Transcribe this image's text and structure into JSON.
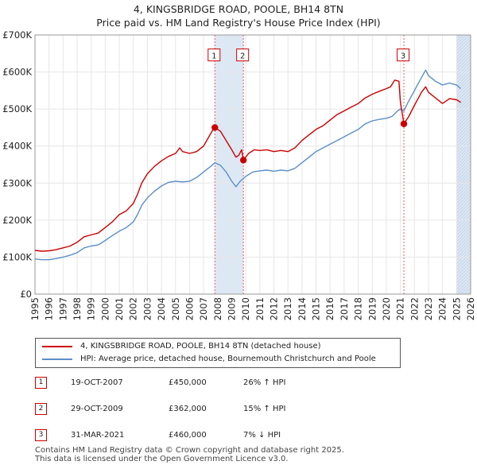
{
  "title": "4, KINGSBRIDGE ROAD, POOLE, BH14 8TN",
  "subtitle": "Price paid vs. HM Land Registry's House Price Index (HPI)",
  "colors": {
    "property": "#cc0000",
    "hpi": "#5b8fc9",
    "shade": "#dde8f5",
    "axis": "#333333"
  },
  "chart_data": {
    "type": "line",
    "title": "4, KINGSBRIDGE ROAD, POOLE, BH14 8TN",
    "subtitle": "Price paid vs. HM Land Registry's House Price Index (HPI)",
    "xlim": [
      1995,
      2026
    ],
    "ylim": [
      0,
      700000
    ],
    "yticks": [
      {
        "value": 0,
        "label": "£0"
      },
      {
        "value": 100000,
        "label": "£100K"
      },
      {
        "value": 200000,
        "label": "£200K"
      },
      {
        "value": 300000,
        "label": "£300K"
      },
      {
        "value": 400000,
        "label": "£400K"
      },
      {
        "value": 500000,
        "label": "£500K"
      },
      {
        "value": 600000,
        "label": "£600K"
      },
      {
        "value": 700000,
        "label": "£700K"
      }
    ],
    "xticks": [
      "1995",
      "1996",
      "1997",
      "1998",
      "1999",
      "2000",
      "2001",
      "2002",
      "2003",
      "2004",
      "2005",
      "2006",
      "2007",
      "2008",
      "2009",
      "2010",
      "2011",
      "2012",
      "2013",
      "2014",
      "2015",
      "2016",
      "2017",
      "2018",
      "2019",
      "2020",
      "2021",
      "2022",
      "2023",
      "2024",
      "2025",
      "2026"
    ],
    "shaded_spans": [
      [
        2007.8,
        2009.83
      ],
      [
        2025.0,
        2026.0
      ]
    ],
    "series": [
      {
        "name": "4, KINGSBRIDGE ROAD, POOLE, BH14 8TN (detached house)",
        "color": "#cc0000",
        "points": [
          [
            1995.0,
            118000
          ],
          [
            1995.5,
            116000
          ],
          [
            1996.0,
            117000
          ],
          [
            1996.5,
            120000
          ],
          [
            1997.0,
            125000
          ],
          [
            1997.5,
            130000
          ],
          [
            1998.0,
            140000
          ],
          [
            1998.5,
            155000
          ],
          [
            1999.0,
            160000
          ],
          [
            1999.5,
            165000
          ],
          [
            2000.0,
            180000
          ],
          [
            2000.5,
            195000
          ],
          [
            2001.0,
            215000
          ],
          [
            2001.5,
            225000
          ],
          [
            2002.0,
            245000
          ],
          [
            2002.3,
            270000
          ],
          [
            2002.6,
            300000
          ],
          [
            2003.0,
            325000
          ],
          [
            2003.5,
            345000
          ],
          [
            2004.0,
            360000
          ],
          [
            2004.5,
            372000
          ],
          [
            2005.0,
            380000
          ],
          [
            2005.3,
            395000
          ],
          [
            2005.5,
            385000
          ],
          [
            2006.0,
            380000
          ],
          [
            2006.5,
            385000
          ],
          [
            2007.0,
            400000
          ],
          [
            2007.3,
            420000
          ],
          [
            2007.6,
            440000
          ],
          [
            2007.8,
            450000
          ],
          [
            2008.2,
            440000
          ],
          [
            2008.6,
            415000
          ],
          [
            2009.0,
            390000
          ],
          [
            2009.3,
            370000
          ],
          [
            2009.5,
            375000
          ],
          [
            2009.7,
            390000
          ],
          [
            2009.83,
            362000
          ],
          [
            2010.2,
            380000
          ],
          [
            2010.6,
            390000
          ],
          [
            2011.0,
            388000
          ],
          [
            2011.5,
            390000
          ],
          [
            2012.0,
            385000
          ],
          [
            2012.5,
            388000
          ],
          [
            2013.0,
            385000
          ],
          [
            2013.5,
            395000
          ],
          [
            2014.0,
            415000
          ],
          [
            2014.5,
            430000
          ],
          [
            2015.0,
            445000
          ],
          [
            2015.5,
            455000
          ],
          [
            2016.0,
            470000
          ],
          [
            2016.5,
            485000
          ],
          [
            2017.0,
            495000
          ],
          [
            2017.5,
            505000
          ],
          [
            2018.0,
            515000
          ],
          [
            2018.5,
            530000
          ],
          [
            2019.0,
            540000
          ],
          [
            2019.5,
            548000
          ],
          [
            2020.0,
            555000
          ],
          [
            2020.3,
            560000
          ],
          [
            2020.6,
            578000
          ],
          [
            2020.9,
            575000
          ],
          [
            2021.0,
            520000
          ],
          [
            2021.25,
            460000
          ],
          [
            2021.6,
            480000
          ],
          [
            2022.0,
            510000
          ],
          [
            2022.5,
            545000
          ],
          [
            2022.8,
            560000
          ],
          [
            2023.0,
            545000
          ],
          [
            2023.5,
            530000
          ],
          [
            2024.0,
            515000
          ],
          [
            2024.5,
            528000
          ],
          [
            2025.0,
            525000
          ],
          [
            2025.3,
            518000
          ]
        ]
      },
      {
        "name": "HPI: Average price, detached house, Bournemouth Christchurch and Poole",
        "color": "#5b8fc9",
        "points": [
          [
            1995.0,
            95000
          ],
          [
            1995.5,
            93000
          ],
          [
            1996.0,
            93000
          ],
          [
            1996.5,
            96000
          ],
          [
            1997.0,
            100000
          ],
          [
            1997.5,
            105000
          ],
          [
            1998.0,
            112000
          ],
          [
            1998.5,
            125000
          ],
          [
            1999.0,
            130000
          ],
          [
            1999.5,
            133000
          ],
          [
            2000.0,
            145000
          ],
          [
            2000.5,
            158000
          ],
          [
            2001.0,
            170000
          ],
          [
            2001.5,
            180000
          ],
          [
            2002.0,
            195000
          ],
          [
            2002.3,
            215000
          ],
          [
            2002.6,
            240000
          ],
          [
            2003.0,
            260000
          ],
          [
            2003.5,
            278000
          ],
          [
            2004.0,
            292000
          ],
          [
            2004.5,
            302000
          ],
          [
            2005.0,
            305000
          ],
          [
            2005.5,
            303000
          ],
          [
            2006.0,
            305000
          ],
          [
            2006.5,
            315000
          ],
          [
            2007.0,
            330000
          ],
          [
            2007.5,
            345000
          ],
          [
            2007.8,
            355000
          ],
          [
            2008.2,
            348000
          ],
          [
            2008.6,
            330000
          ],
          [
            2009.0,
            305000
          ],
          [
            2009.3,
            290000
          ],
          [
            2009.6,
            305000
          ],
          [
            2010.0,
            318000
          ],
          [
            2010.5,
            330000
          ],
          [
            2011.0,
            333000
          ],
          [
            2011.5,
            335000
          ],
          [
            2012.0,
            332000
          ],
          [
            2012.5,
            335000
          ],
          [
            2013.0,
            333000
          ],
          [
            2013.5,
            340000
          ],
          [
            2014.0,
            355000
          ],
          [
            2014.5,
            370000
          ],
          [
            2015.0,
            385000
          ],
          [
            2015.5,
            395000
          ],
          [
            2016.0,
            405000
          ],
          [
            2016.5,
            415000
          ],
          [
            2017.0,
            425000
          ],
          [
            2017.5,
            435000
          ],
          [
            2018.0,
            445000
          ],
          [
            2018.5,
            460000
          ],
          [
            2019.0,
            468000
          ],
          [
            2019.5,
            472000
          ],
          [
            2020.0,
            475000
          ],
          [
            2020.4,
            480000
          ],
          [
            2020.8,
            495000
          ],
          [
            2021.0,
            500000
          ],
          [
            2021.25,
            495000
          ],
          [
            2021.5,
            515000
          ],
          [
            2022.0,
            550000
          ],
          [
            2022.5,
            585000
          ],
          [
            2022.8,
            605000
          ],
          [
            2023.0,
            590000
          ],
          [
            2023.5,
            575000
          ],
          [
            2024.0,
            565000
          ],
          [
            2024.5,
            570000
          ],
          [
            2025.0,
            565000
          ],
          [
            2025.3,
            555000
          ]
        ]
      }
    ],
    "sales": [
      {
        "label": "1",
        "year": 2007.8,
        "value": 450000,
        "box_value": 645000
      },
      {
        "label": "2",
        "year": 2009.83,
        "value": 362000,
        "box_value": 645000
      },
      {
        "label": "3",
        "year": 2021.25,
        "value": 460000,
        "box_value": 645000
      }
    ]
  },
  "legend": {
    "property": "4, KINGSBRIDGE ROAD, POOLE, BH14 8TN (detached house)",
    "hpi": "HPI: Average price, detached house, Bournemouth Christchurch and Poole"
  },
  "transactions": [
    {
      "num": "1",
      "date": "19-OCT-2007",
      "price": "£450,000",
      "hpi": "26% ↑ HPI"
    },
    {
      "num": "2",
      "date": "29-OCT-2009",
      "price": "£362,000",
      "hpi": "15% ↑ HPI"
    },
    {
      "num": "3",
      "date": "31-MAR-2021",
      "price": "£460,000",
      "hpi": "7% ↓ HPI"
    }
  ],
  "footer": {
    "line1": "Contains HM Land Registry data © Crown copyright and database right 2025.",
    "line2": "This data is licensed under the Open Government Licence v3.0."
  }
}
